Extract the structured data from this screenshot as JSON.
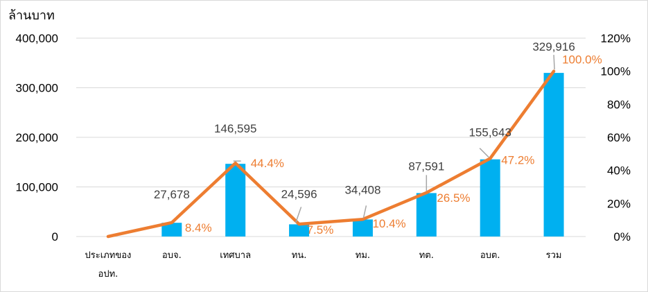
{
  "chart_data": {
    "type": "bar",
    "title": "",
    "ylabel": "ล้านบาท",
    "y2label": "",
    "ylim": [
      0,
      400000
    ],
    "y2lim": [
      0,
      1.2
    ],
    "yticks": [
      "0",
      "100,000",
      "200,000",
      "300,000",
      "400,000"
    ],
    "y2ticks": [
      "0%",
      "20%",
      "40%",
      "60%",
      "80%",
      "100%",
      "120%"
    ],
    "grid": true,
    "legend": "none",
    "categories": [
      [
        "ประเภทของ",
        "อปท."
      ],
      [
        "อบจ."
      ],
      [
        "เทศบาล"
      ],
      [
        "ทน."
      ],
      [
        "ทม."
      ],
      [
        "ทต."
      ],
      [
        "อบต."
      ],
      [
        "รวม"
      ]
    ],
    "series": [
      {
        "type": "bar",
        "axis": "left",
        "values": [
          null,
          27678,
          146595,
          24596,
          34408,
          87591,
          155643,
          329916
        ],
        "labels": [
          "",
          "27,678",
          "146,595",
          "24,596",
          "34,408",
          "87,591",
          "155,643",
          "329,916"
        ]
      },
      {
        "type": "line",
        "axis": "right",
        "values": [
          0,
          0.084,
          0.444,
          0.075,
          0.104,
          0.265,
          0.472,
          1.0
        ],
        "labels": [
          "",
          "8.4%",
          "44.4%",
          "7.5%",
          "10.4%",
          "26.5%",
          "47.2%",
          "100.0%"
        ]
      }
    ],
    "colors": {
      "bar": "#00B0F0",
      "line": "#ED7D31",
      "grid": "#D9D9D9"
    }
  }
}
